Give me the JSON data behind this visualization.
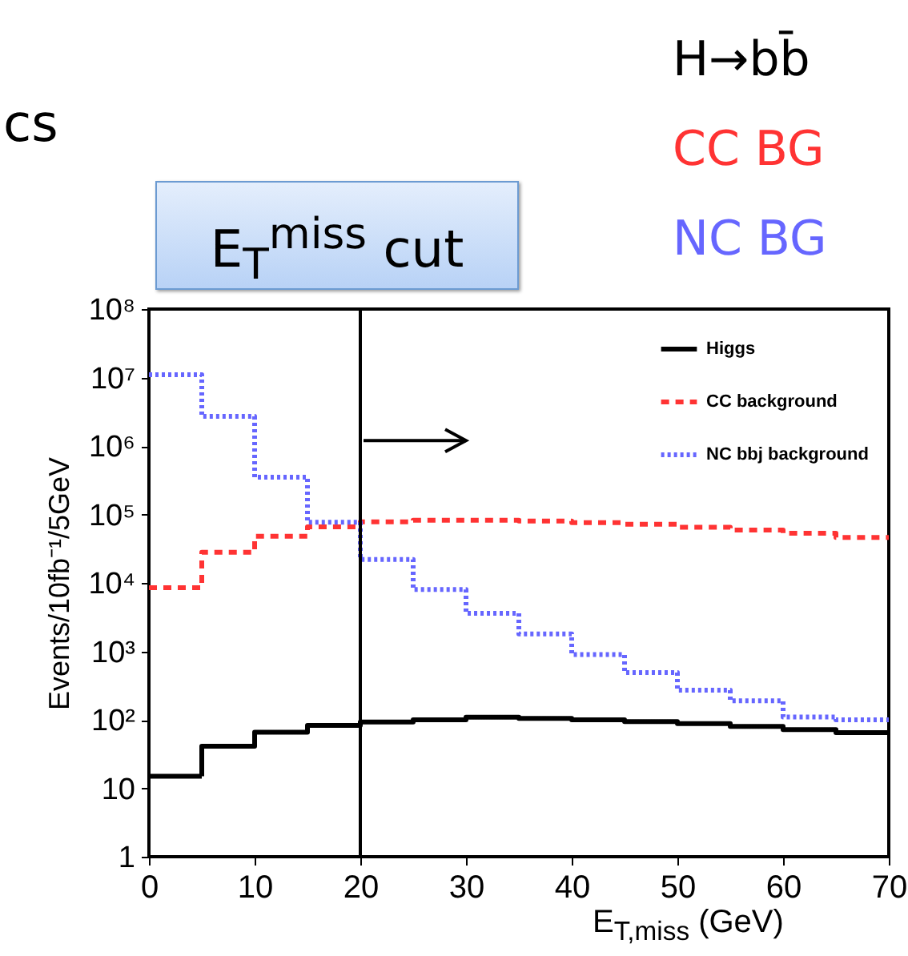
{
  "chart_data": {
    "type": "histogram",
    "xlabel": "E$_{T,miss}$ (GeV)",
    "ylabel": "Events/10fb⁻¹/5GeV",
    "annotations": [
      "cs",
      "E$_{T}$$^{miss}$ cut",
      "H→bb̄",
      "CC BG",
      "NC BG"
    ],
    "bins": [
      0,
      5,
      10,
      15,
      20,
      25,
      30,
      35,
      40,
      45,
      50,
      55,
      60,
      65,
      70
    ],
    "series": [
      {
        "name": "Higgs",
        "color": "#000000",
        "line_style": "solid",
        "values": [
          15,
          41,
          66,
          83,
          93,
          100,
          109,
          105,
          100,
          94,
          88,
          80,
          72,
          65
        ]
      },
      {
        "name": "CC background",
        "color": "#ff3333",
        "line_style": "dashed",
        "values": [
          8500,
          28000,
          48000,
          66000,
          78000,
          82000,
          82000,
          80000,
          76000,
          72000,
          65000,
          59000,
          53000,
          46000
        ]
      },
      {
        "name": "NC bbj background",
        "color": "#6666ff",
        "line_style": "dotted",
        "values": [
          11000000,
          2700000,
          350000,
          77000,
          22000,
          8000,
          3600,
          1800,
          900,
          490,
          270,
          190,
          110,
          100
        ]
      }
    ],
    "xlim": [
      0,
      70
    ],
    "xticks": [
      0,
      10,
      20,
      30,
      40,
      50,
      60,
      70
    ],
    "ylim": [
      1,
      100000000
    ],
    "yticks": [
      1,
      10,
      {
        "value": 100,
        "label": "10²"
      },
      {
        "value": 1000,
        "label": "10³"
      },
      {
        "value": 10000,
        "label": "10⁴"
      },
      {
        "value": 100000,
        "label": "10⁵"
      },
      {
        "value": 1000000,
        "label": "10⁶"
      },
      {
        "value": 10000000,
        "label": "10⁷"
      },
      {
        "value": 100000000,
        "label": "10⁸"
      }
    ],
    "log": "y",
    "grid": false,
    "legend": "top right",
    "ref_lines": [
      {
        "axis": "x",
        "value": 20,
        "color": "#000000"
      }
    ]
  }
}
